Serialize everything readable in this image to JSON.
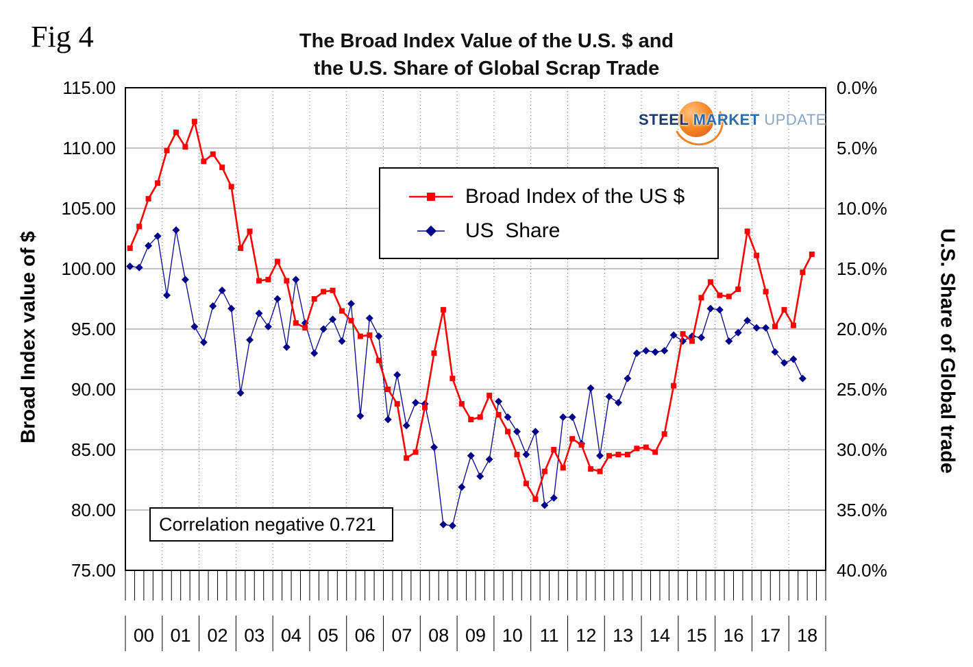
{
  "figure_label": "Fig 4",
  "title_line1": "The Broad Index Value of the U.S. $ and",
  "title_line2": "the U.S. Share of Global Scrap Trade",
  "left_axis_title": "Broad Index value of $",
  "right_axis_title": "U.S. Share of Global trade",
  "annotation": "Correlation negative 0.721",
  "logo": {
    "word1": "STEEL",
    "word2": "MARKET",
    "word3": "UPDATE"
  },
  "legend": [
    {
      "label": "Broad Index of the US $",
      "color": "#ff0000",
      "marker": "square"
    },
    {
      "label": "US  Share",
      "color": "#00008b",
      "marker": "diamond"
    }
  ],
  "chart_data": {
    "type": "line",
    "title": "The Broad Index Value of the U.S. $ and the U.S. Share of Global Scrap Trade",
    "x_years": [
      "00",
      "01",
      "02",
      "03",
      "04",
      "05",
      "06",
      "07",
      "08",
      "09",
      "10",
      "11",
      "12",
      "13",
      "14",
      "15",
      "16",
      "17",
      "18"
    ],
    "points_per_year": 4,
    "left_axis": {
      "label": "Broad Index value of $",
      "min": 75,
      "max": 115,
      "step": 5
    },
    "right_axis": {
      "label": "U.S. Share of Global trade",
      "min": 0,
      "max": 40,
      "step": 5,
      "unit": "%",
      "inverted": true
    },
    "grid": {
      "horizontal": "solid",
      "vertical": "dotted-at-year-boundaries"
    },
    "legend_position": "inside-top-center",
    "series": [
      {
        "name": "Broad Index of the US $",
        "axis": "left",
        "color": "#ff0000",
        "marker": "square",
        "values": [
          101.7,
          103.5,
          105.8,
          107.1,
          109.8,
          111.3,
          110.1,
          112.2,
          108.9,
          109.5,
          108.4,
          106.8,
          101.7,
          103.1,
          99.0,
          99.1,
          100.6,
          99.0,
          95.5,
          95.1,
          97.5,
          98.1,
          98.2,
          96.5,
          95.7,
          94.4,
          94.5,
          92.4,
          90.0,
          88.8,
          84.3,
          84.8,
          88.5,
          93.0,
          96.6,
          90.9,
          88.8,
          87.5,
          87.7,
          89.5,
          87.9,
          86.5,
          84.6,
          82.2,
          80.9,
          83.2,
          85.0,
          83.5,
          85.9,
          85.4,
          83.4,
          83.2,
          84.5,
          84.6,
          84.6,
          85.1,
          85.2,
          84.8,
          86.3,
          90.3,
          94.6,
          94.0,
          97.6,
          98.9,
          97.8,
          97.7,
          98.3,
          103.1,
          101.1,
          98.1,
          95.2,
          96.6,
          95.3,
          99.7,
          101.2
        ]
      },
      {
        "name": "US Share",
        "axis": "right",
        "color": "#00008b",
        "marker": "diamond",
        "values_percent": [
          14.8,
          14.9,
          13.1,
          12.3,
          17.2,
          11.8,
          15.9,
          19.8,
          21.1,
          18.1,
          16.8,
          18.3,
          25.3,
          20.9,
          18.7,
          19.8,
          17.5,
          21.5,
          15.9,
          19.5,
          22.0,
          20.0,
          19.2,
          21.0,
          17.9,
          27.2,
          19.1,
          20.6,
          27.5,
          23.8,
          28.0,
          26.1,
          26.2,
          29.8,
          36.2,
          36.3,
          33.1,
          30.5,
          32.2,
          30.8,
          26.0,
          27.3,
          28.5,
          30.4,
          28.5,
          34.6,
          34.0,
          27.3,
          27.3,
          29.5,
          24.9,
          30.5,
          25.6,
          26.1,
          24.1,
          22.0,
          21.8,
          21.9,
          21.8,
          20.5,
          21.0,
          20.6,
          20.7,
          18.3,
          18.4,
          21.0,
          20.3,
          19.3,
          19.9,
          19.9,
          21.9,
          22.8,
          22.5,
          24.1
        ]
      }
    ]
  }
}
